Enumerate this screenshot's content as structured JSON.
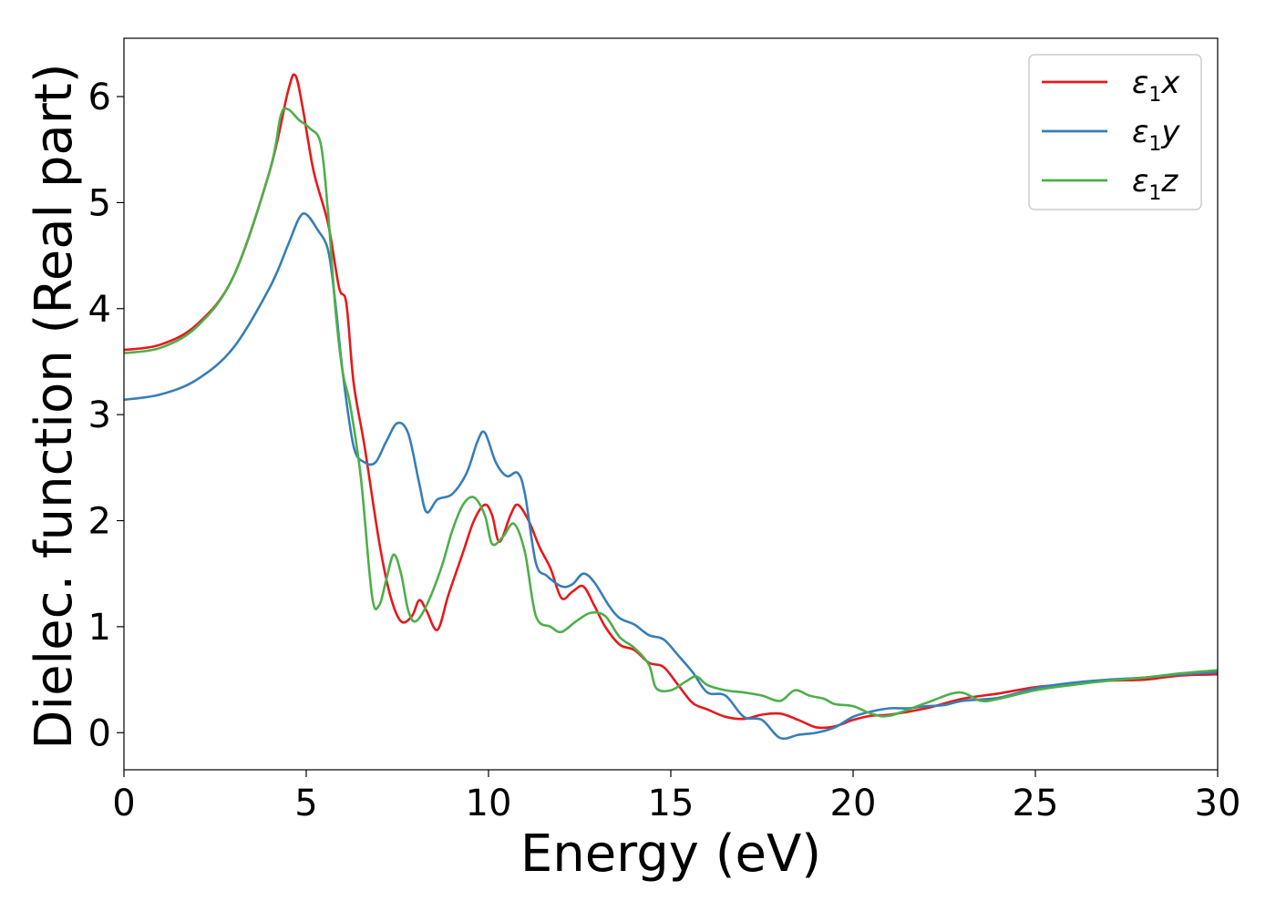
{
  "chart_data": {
    "type": "line",
    "title": "",
    "xlabel": "Energy (eV)",
    "ylabel": "Dielec. function (Real part)",
    "xlim": [
      0,
      30
    ],
    "ylim": [
      -0.35,
      6.55
    ],
    "xticks": [
      0,
      5,
      10,
      15,
      20,
      25,
      30
    ],
    "yticks": [
      0,
      1,
      2,
      3,
      4,
      5,
      6
    ],
    "grid": false,
    "legend_position": "top-right",
    "series": [
      {
        "name": "ε1x",
        "legend_symbol": "ε",
        "legend_sub": "1",
        "legend_var": "x",
        "color": "#e41a1c",
        "points": [
          [
            0,
            3.61
          ],
          [
            1,
            3.66
          ],
          [
            2,
            3.85
          ],
          [
            3,
            4.3
          ],
          [
            4,
            5.3
          ],
          [
            4.5,
            6.05
          ],
          [
            4.7,
            6.2
          ],
          [
            4.9,
            5.9
          ],
          [
            5.2,
            5.3
          ],
          [
            5.6,
            4.8
          ],
          [
            5.9,
            4.2
          ],
          [
            6.1,
            4.05
          ],
          [
            6.3,
            3.3
          ],
          [
            6.6,
            2.7
          ],
          [
            7,
            1.8
          ],
          [
            7.3,
            1.3
          ],
          [
            7.6,
            1.05
          ],
          [
            7.9,
            1.1
          ],
          [
            8.1,
            1.25
          ],
          [
            8.3,
            1.15
          ],
          [
            8.6,
            0.97
          ],
          [
            8.9,
            1.3
          ],
          [
            9.3,
            1.7
          ],
          [
            9.6,
            2.0
          ],
          [
            9.9,
            2.15
          ],
          [
            10.1,
            2.05
          ],
          [
            10.3,
            1.8
          ],
          [
            10.6,
            2.05
          ],
          [
            10.8,
            2.15
          ],
          [
            11.1,
            2.0
          ],
          [
            11.4,
            1.75
          ],
          [
            11.7,
            1.55
          ],
          [
            12.0,
            1.27
          ],
          [
            12.3,
            1.33
          ],
          [
            12.6,
            1.38
          ],
          [
            12.9,
            1.2
          ],
          [
            13.2,
            1.0
          ],
          [
            13.6,
            0.83
          ],
          [
            14.0,
            0.78
          ],
          [
            14.4,
            0.66
          ],
          [
            14.8,
            0.62
          ],
          [
            15.2,
            0.45
          ],
          [
            15.6,
            0.28
          ],
          [
            16.0,
            0.22
          ],
          [
            16.5,
            0.15
          ],
          [
            17.0,
            0.13
          ],
          [
            17.5,
            0.17
          ],
          [
            18.0,
            0.18
          ],
          [
            18.5,
            0.12
          ],
          [
            19.0,
            0.05
          ],
          [
            19.5,
            0.06
          ],
          [
            20.0,
            0.12
          ],
          [
            20.5,
            0.16
          ],
          [
            21.0,
            0.17
          ],
          [
            22.0,
            0.23
          ],
          [
            23.0,
            0.32
          ],
          [
            24.0,
            0.37
          ],
          [
            25.0,
            0.43
          ],
          [
            26.0,
            0.46
          ],
          [
            27.0,
            0.49
          ],
          [
            28.0,
            0.5
          ],
          [
            29.0,
            0.54
          ],
          [
            30.0,
            0.55
          ]
        ]
      },
      {
        "name": "ε1y",
        "legend_symbol": "ε",
        "legend_sub": "1",
        "legend_var": "y",
        "color": "#377eb8",
        "points": [
          [
            0,
            3.14
          ],
          [
            1,
            3.19
          ],
          [
            2,
            3.33
          ],
          [
            3,
            3.63
          ],
          [
            4,
            4.2
          ],
          [
            4.5,
            4.6
          ],
          [
            4.8,
            4.85
          ],
          [
            5.0,
            4.89
          ],
          [
            5.3,
            4.75
          ],
          [
            5.6,
            4.55
          ],
          [
            5.8,
            4.05
          ],
          [
            6.0,
            3.4
          ],
          [
            6.3,
            2.7
          ],
          [
            6.6,
            2.55
          ],
          [
            6.9,
            2.55
          ],
          [
            7.2,
            2.75
          ],
          [
            7.5,
            2.92
          ],
          [
            7.8,
            2.82
          ],
          [
            8.1,
            2.35
          ],
          [
            8.3,
            2.08
          ],
          [
            8.6,
            2.2
          ],
          [
            9.0,
            2.25
          ],
          [
            9.4,
            2.45
          ],
          [
            9.7,
            2.75
          ],
          [
            9.9,
            2.83
          ],
          [
            10.2,
            2.55
          ],
          [
            10.5,
            2.42
          ],
          [
            10.8,
            2.45
          ],
          [
            11.0,
            2.25
          ],
          [
            11.3,
            1.6
          ],
          [
            11.6,
            1.48
          ],
          [
            12.0,
            1.38
          ],
          [
            12.3,
            1.4
          ],
          [
            12.6,
            1.5
          ],
          [
            12.9,
            1.42
          ],
          [
            13.3,
            1.2
          ],
          [
            13.6,
            1.08
          ],
          [
            14.0,
            1.02
          ],
          [
            14.4,
            0.92
          ],
          [
            14.8,
            0.88
          ],
          [
            15.2,
            0.73
          ],
          [
            15.6,
            0.57
          ],
          [
            16.0,
            0.38
          ],
          [
            16.5,
            0.35
          ],
          [
            17.0,
            0.15
          ],
          [
            17.5,
            0.12
          ],
          [
            18.0,
            -0.05
          ],
          [
            18.5,
            -0.02
          ],
          [
            19.0,
            0.0
          ],
          [
            19.5,
            0.05
          ],
          [
            20.0,
            0.15
          ],
          [
            20.5,
            0.2
          ],
          [
            21.0,
            0.23
          ],
          [
            21.5,
            0.23
          ],
          [
            22.0,
            0.25
          ],
          [
            22.5,
            0.26
          ],
          [
            23.0,
            0.3
          ],
          [
            24.0,
            0.33
          ],
          [
            25.0,
            0.42
          ],
          [
            26.0,
            0.47
          ],
          [
            27.0,
            0.5
          ],
          [
            28.0,
            0.52
          ],
          [
            29.0,
            0.55
          ],
          [
            30.0,
            0.57
          ]
        ]
      },
      {
        "name": "ε1z",
        "legend_symbol": "ε",
        "legend_sub": "1",
        "legend_var": "z",
        "color": "#4daf4a",
        "points": [
          [
            0,
            3.58
          ],
          [
            1,
            3.63
          ],
          [
            2,
            3.83
          ],
          [
            3,
            4.3
          ],
          [
            4,
            5.3
          ],
          [
            4.3,
            5.82
          ],
          [
            4.5,
            5.88
          ],
          [
            4.8,
            5.78
          ],
          [
            5.1,
            5.7
          ],
          [
            5.4,
            5.55
          ],
          [
            5.6,
            4.9
          ],
          [
            5.8,
            4.0
          ],
          [
            6.0,
            3.4
          ],
          [
            6.2,
            3.1
          ],
          [
            6.5,
            2.4
          ],
          [
            6.8,
            1.3
          ],
          [
            7.0,
            1.2
          ],
          [
            7.2,
            1.45
          ],
          [
            7.4,
            1.68
          ],
          [
            7.6,
            1.5
          ],
          [
            7.8,
            1.15
          ],
          [
            8.0,
            1.05
          ],
          [
            8.3,
            1.2
          ],
          [
            8.7,
            1.55
          ],
          [
            9.0,
            1.9
          ],
          [
            9.3,
            2.15
          ],
          [
            9.6,
            2.22
          ],
          [
            9.9,
            2.05
          ],
          [
            10.1,
            1.78
          ],
          [
            10.4,
            1.85
          ],
          [
            10.7,
            1.97
          ],
          [
            11.0,
            1.7
          ],
          [
            11.3,
            1.1
          ],
          [
            11.7,
            1.0
          ],
          [
            12.0,
            0.95
          ],
          [
            12.4,
            1.05
          ],
          [
            12.8,
            1.13
          ],
          [
            13.2,
            1.1
          ],
          [
            13.6,
            0.9
          ],
          [
            14.0,
            0.8
          ],
          [
            14.4,
            0.64
          ],
          [
            14.6,
            0.42
          ],
          [
            15.0,
            0.4
          ],
          [
            15.4,
            0.48
          ],
          [
            15.7,
            0.53
          ],
          [
            16.0,
            0.45
          ],
          [
            16.5,
            0.4
          ],
          [
            17.0,
            0.38
          ],
          [
            17.5,
            0.35
          ],
          [
            18.0,
            0.3
          ],
          [
            18.4,
            0.4
          ],
          [
            18.8,
            0.35
          ],
          [
            19.2,
            0.32
          ],
          [
            19.5,
            0.27
          ],
          [
            20.0,
            0.25
          ],
          [
            20.5,
            0.18
          ],
          [
            21.0,
            0.16
          ],
          [
            22.0,
            0.28
          ],
          [
            22.9,
            0.38
          ],
          [
            23.5,
            0.3
          ],
          [
            24.0,
            0.32
          ],
          [
            25.0,
            0.4
          ],
          [
            26.0,
            0.45
          ],
          [
            27.0,
            0.49
          ],
          [
            28.0,
            0.52
          ],
          [
            29.0,
            0.56
          ],
          [
            30.0,
            0.59
          ]
        ]
      }
    ]
  }
}
